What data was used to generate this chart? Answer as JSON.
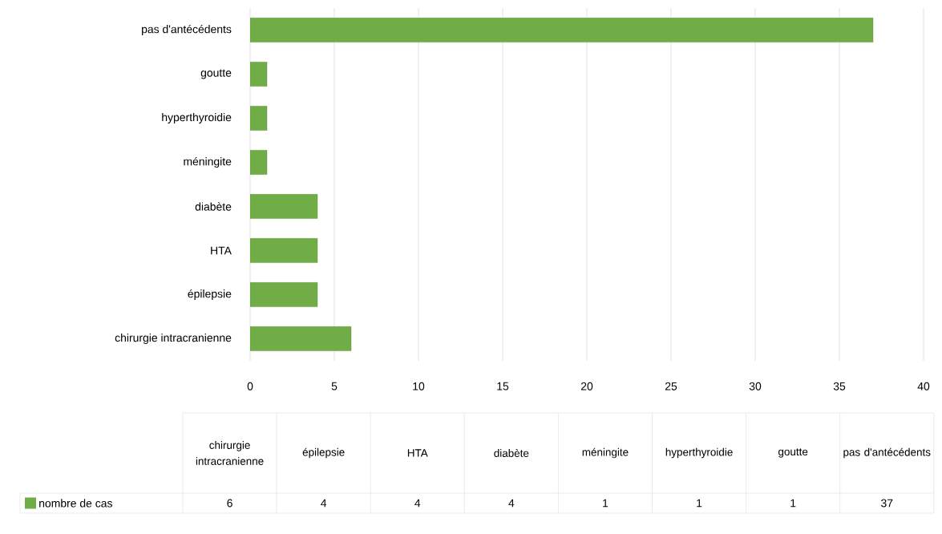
{
  "chart_data": {
    "type": "bar",
    "orientation": "horizontal",
    "categories": [
      "pas d'antécédents",
      "goutte",
      "hyperthyroidie",
      "méningite",
      "diabète",
      "HTA",
      "épilepsie",
      "chirurgie intracranienne"
    ],
    "series": [
      {
        "name": "nombre de cas",
        "color": "#70ad47",
        "values": [
          37,
          1,
          1,
          1,
          4,
          4,
          4,
          6
        ]
      }
    ],
    "xlim": [
      0,
      40
    ],
    "xticks": [
      0,
      5,
      10,
      15,
      20,
      25,
      30,
      35,
      40
    ],
    "value_labels": [
      "37",
      "1",
      "1",
      "1",
      "4",
      "4",
      "4",
      "6"
    ],
    "grid": "x",
    "legend": "bottom"
  }
}
